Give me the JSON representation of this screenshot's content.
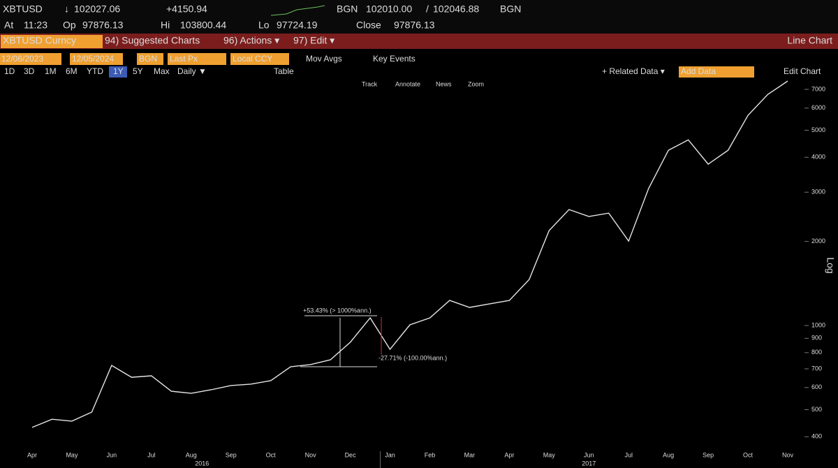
{
  "terminal": {
    "ticker": "XBTUSD",
    "arrow": "↓",
    "last": "102027.06",
    "change": "+4150.94",
    "source": "BGN",
    "bid": "102010.00",
    "sep": "/",
    "ask": "102046.88",
    "source2": "BGN",
    "at_label": "At",
    "at": "11:23",
    "op_label": "Op",
    "op": "97876.13",
    "hi_label": "Hi",
    "hi": "103800.44",
    "lo_label": "Lo",
    "lo": "97724.19",
    "close_label": "Close",
    "close": "97876.13",
    "security": "XBTUSD Curncy",
    "menu": [
      "94) Suggested Charts",
      "96) Actions ▾",
      "97) Edit ▾"
    ],
    "view": "Line Chart",
    "start_date": "12/06/2023",
    "end_date": "12/05/2024",
    "source_field": "BGN",
    "price_field": "Last Px",
    "currency_field": "Local CCY",
    "toggles": [
      "Mov Avgs",
      "Key Events"
    ],
    "periods": [
      "1D",
      "3D",
      "1M",
      "6M",
      "YTD",
      "1Y",
      "5Y",
      "Max"
    ],
    "frequency": "Daily ▼",
    "table": "Table",
    "related": "+ Related Data ▾",
    "add_data": "Add Data",
    "edit_chart": "Edit Chart",
    "tools": [
      "Track",
      "Annotate",
      "News",
      "Zoom"
    ]
  },
  "chart_data": {
    "type": "line",
    "log_scale": true,
    "y_label": "Log",
    "color": "#e6e6e6",
    "categories": [
      "Apr",
      null,
      "May",
      null,
      "Jun",
      null,
      "Jul",
      null,
      "Aug",
      null,
      "Sep",
      null,
      "Oct",
      null,
      "Nov",
      null,
      "Dec",
      null,
      "Jan",
      null,
      "Feb",
      null,
      "Mar",
      null,
      "Apr",
      null,
      "May",
      null,
      "Jun",
      null,
      "Jul",
      null,
      "Aug",
      null,
      "Sep",
      null,
      "Oct",
      null,
      "Nov"
    ],
    "values": [
      432,
      462,
      455,
      490,
      720,
      653,
      661,
      582,
      572,
      589,
      610,
      617,
      635,
      712,
      725,
      754,
      871,
      1065,
      822,
      1006,
      1065,
      1230,
      1161,
      1195,
      1230,
      1462,
      2187,
      2600,
      2456,
      2525,
      2005,
      3090,
      4240,
      4620,
      3780,
      4240,
      5650,
      6715,
      7500
    ],
    "year_labels": [
      "2016",
      "2017"
    ],
    "ylim": [
      357,
      7630
    ],
    "yticks": [
      400,
      500,
      600,
      700,
      800,
      900,
      1000,
      2000,
      3000,
      4000,
      5000,
      6000,
      7000
    ],
    "annotations": [
      "+53.43% (> 1000%ann.)",
      "-27.71% (-100.00%ann.)"
    ]
  }
}
